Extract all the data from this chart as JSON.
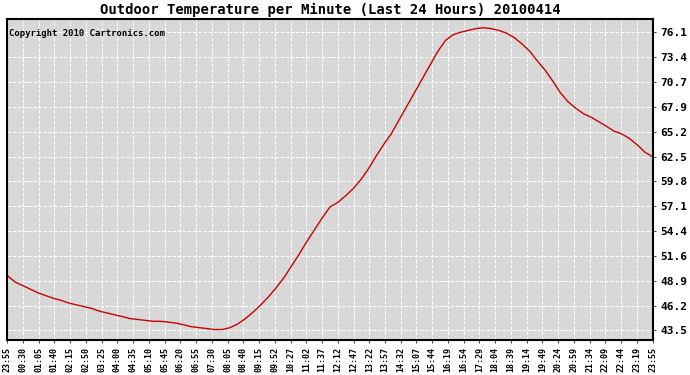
{
  "title": "Outdoor Temperature per Minute (Last 24 Hours) 20100414",
  "copyright_text": "Copyright 2010 Cartronics.com",
  "line_color": "#cc0000",
  "bg_color": "#ffffff",
  "plot_bg_color": "#d8d8d8",
  "grid_color": "#ffffff",
  "border_color": "#000000",
  "yticks": [
    43.5,
    46.2,
    48.9,
    51.6,
    54.4,
    57.1,
    59.8,
    62.5,
    65.2,
    67.9,
    70.7,
    73.4,
    76.1
  ],
  "ylim": [
    42.5,
    77.5
  ],
  "xtick_labels": [
    "23:55",
    "00:30",
    "01:05",
    "01:40",
    "02:15",
    "02:50",
    "03:25",
    "04:00",
    "04:35",
    "05:10",
    "05:45",
    "06:20",
    "06:55",
    "07:30",
    "08:05",
    "08:40",
    "09:15",
    "09:52",
    "10:27",
    "11:02",
    "11:37",
    "12:12",
    "12:47",
    "13:22",
    "13:57",
    "14:32",
    "15:07",
    "15:44",
    "16:19",
    "16:54",
    "17:29",
    "18:04",
    "18:39",
    "19:14",
    "19:49",
    "20:24",
    "20:59",
    "21:34",
    "22:09",
    "22:44",
    "23:19",
    "23:55"
  ],
  "key_x": [
    0.0,
    0.012,
    0.024,
    0.036,
    0.048,
    0.06,
    0.072,
    0.083,
    0.095,
    0.107,
    0.119,
    0.131,
    0.143,
    0.155,
    0.167,
    0.179,
    0.19,
    0.202,
    0.214,
    0.226,
    0.238,
    0.25,
    0.262,
    0.274,
    0.286,
    0.298,
    0.31,
    0.321,
    0.333,
    0.345,
    0.357,
    0.369,
    0.381,
    0.393,
    0.405,
    0.417,
    0.429,
    0.44,
    0.452,
    0.464,
    0.476,
    0.488,
    0.5,
    0.512,
    0.524,
    0.536,
    0.548,
    0.56,
    0.571,
    0.583,
    0.595,
    0.607,
    0.619,
    0.631,
    0.643,
    0.655,
    0.667,
    0.679,
    0.69,
    0.702,
    0.714,
    0.726,
    0.738,
    0.75,
    0.762,
    0.774,
    0.786,
    0.798,
    0.81,
    0.821,
    0.833,
    0.845,
    0.857,
    0.869,
    0.881,
    0.893,
    0.905,
    0.917,
    0.929,
    0.94,
    0.952,
    0.964,
    0.976,
    0.988,
    1.0
  ],
  "key_y": [
    49.5,
    48.8,
    48.4,
    48.0,
    47.6,
    47.3,
    47.0,
    46.8,
    46.5,
    46.3,
    46.1,
    45.9,
    45.6,
    45.4,
    45.2,
    45.0,
    44.8,
    44.7,
    44.6,
    44.5,
    44.5,
    44.4,
    44.3,
    44.1,
    43.9,
    43.8,
    43.7,
    43.6,
    43.6,
    43.8,
    44.2,
    44.8,
    45.5,
    46.3,
    47.2,
    48.2,
    49.3,
    50.5,
    51.8,
    53.2,
    54.5,
    55.8,
    57.0,
    57.5,
    58.2,
    59.0,
    60.0,
    61.2,
    62.5,
    63.8,
    65.0,
    66.5,
    68.0,
    69.5,
    71.0,
    72.5,
    74.0,
    75.2,
    75.8,
    76.1,
    76.3,
    76.5,
    76.6,
    76.5,
    76.3,
    76.0,
    75.5,
    74.8,
    74.0,
    73.0,
    72.0,
    70.8,
    69.5,
    68.5,
    67.8,
    67.2,
    66.8,
    66.3,
    65.8,
    65.3,
    65.0,
    64.5,
    63.8,
    63.0,
    62.5
  ]
}
